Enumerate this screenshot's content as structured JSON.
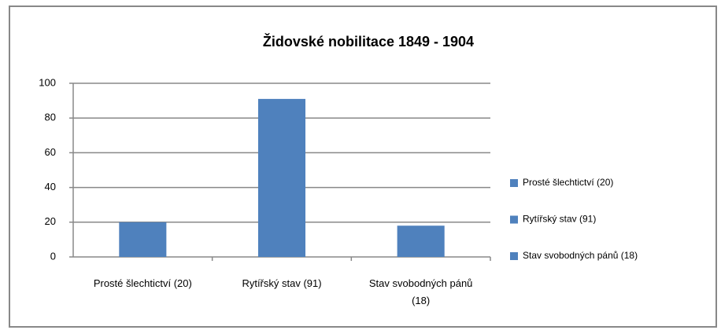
{
  "chart_data": {
    "type": "bar",
    "title": "Židovské nobilitace 1849 - 1904",
    "categories": [
      "Prosté šlechtictví (20)",
      "Rytířský stav (91)",
      "Stav svobodných pánů (18)"
    ],
    "values": [
      20,
      91,
      18
    ],
    "color": "#4f81bd",
    "ylim": [
      0,
      100
    ],
    "yticks": [
      0,
      20,
      40,
      60,
      80,
      100
    ],
    "grid": true,
    "legend": "right"
  }
}
